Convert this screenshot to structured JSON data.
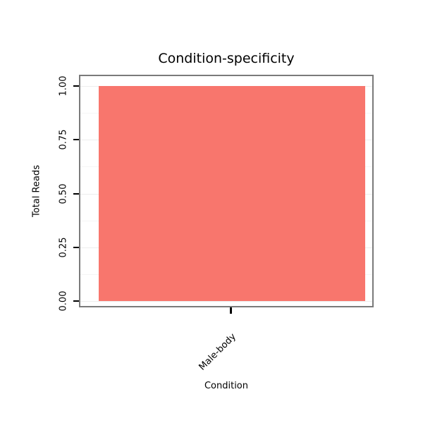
{
  "chart_data": {
    "type": "bar",
    "title": "Condition-specificity",
    "xlabel": "Condition",
    "ylabel": "Total Reads",
    "categories": [
      "Male-body"
    ],
    "values": [
      1.0
    ],
    "ylim": [
      0,
      1
    ],
    "yticks": [
      0,
      0.25,
      0.5,
      0.75,
      1.0
    ],
    "ytick_labels": [
      "0.00",
      "0.25",
      "0.50",
      "0.75",
      "1.00"
    ],
    "bar_color": "#F8766D",
    "panel_border_color": "#7a7a7a",
    "gridline_major_color": "#ededed",
    "gridline_minor_color": "#f5f5f5",
    "grid": true,
    "legend": "none"
  }
}
